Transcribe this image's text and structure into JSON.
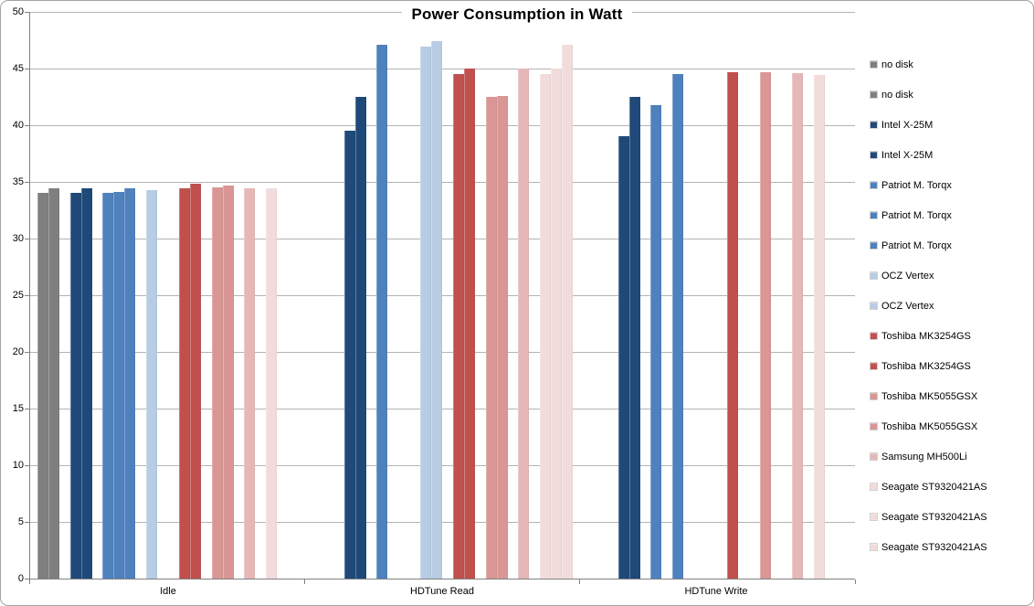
{
  "chart_data": {
    "type": "bar",
    "title": "Power Consumption in Watt",
    "categories": [
      "Idle",
      "HDTune Read",
      "HDTune Write"
    ],
    "xlabel": "",
    "ylabel": "",
    "ylim": [
      0,
      50
    ],
    "yticks": [
      0,
      5,
      10,
      15,
      20,
      25,
      30,
      35,
      40,
      45,
      50
    ],
    "grid": true,
    "legend_position": "right",
    "series": [
      {
        "name": "no disk",
        "color": "#7F7F7F",
        "values": [
          34.0,
          null,
          null
        ]
      },
      {
        "name": "no disk",
        "color": "#7F7F7F",
        "values": [
          34.4,
          null,
          null
        ]
      },
      {
        "name": "Intel X-25M",
        "color": "#1F4979",
        "values": [
          34.0,
          39.5,
          39.0
        ]
      },
      {
        "name": "Intel X-25M",
        "color": "#1F4979",
        "values": [
          34.4,
          42.5,
          42.5
        ]
      },
      {
        "name": "Patriot M. Torqx",
        "color": "#4F81BD",
        "values": [
          34.0,
          47.1,
          41.8
        ]
      },
      {
        "name": "Patriot M. Torqx",
        "color": "#4F81BD",
        "values": [
          34.1,
          null,
          null
        ]
      },
      {
        "name": "Patriot M. Torqx",
        "color": "#4F81BD",
        "values": [
          34.4,
          null,
          44.5
        ]
      },
      {
        "name": "OCZ Vertex",
        "color": "#B8CCE4",
        "values": [
          34.3,
          46.9,
          null
        ]
      },
      {
        "name": "OCZ Vertex",
        "color": "#B8CCE4",
        "values": [
          null,
          47.4,
          null
        ]
      },
      {
        "name": "Toshiba MK3254GS",
        "color": "#C0504D",
        "values": [
          34.4,
          44.5,
          44.7
        ]
      },
      {
        "name": "Toshiba MK3254GS",
        "color": "#C0504D",
        "values": [
          34.8,
          45.0,
          null
        ]
      },
      {
        "name": "Toshiba MK5055GSX",
        "color": "#D99694",
        "values": [
          34.5,
          42.5,
          44.7
        ]
      },
      {
        "name": "Toshiba MK5055GSX",
        "color": "#D99694",
        "values": [
          34.7,
          42.6,
          null
        ]
      },
      {
        "name": "Samsung MH500Li",
        "color": "#E5B8B7",
        "values": [
          34.4,
          45.0,
          44.6
        ]
      },
      {
        "name": "Seagate ST9320421AS",
        "color": "#F2DCDB",
        "values": [
          34.4,
          44.5,
          44.4
        ]
      },
      {
        "name": "Seagate ST9320421AS",
        "color": "#F2DCDB",
        "values": [
          null,
          45.0,
          null
        ]
      },
      {
        "name": "Seagate ST9320421AS",
        "color": "#F2DCDB",
        "values": [
          null,
          47.1,
          null
        ]
      }
    ]
  }
}
